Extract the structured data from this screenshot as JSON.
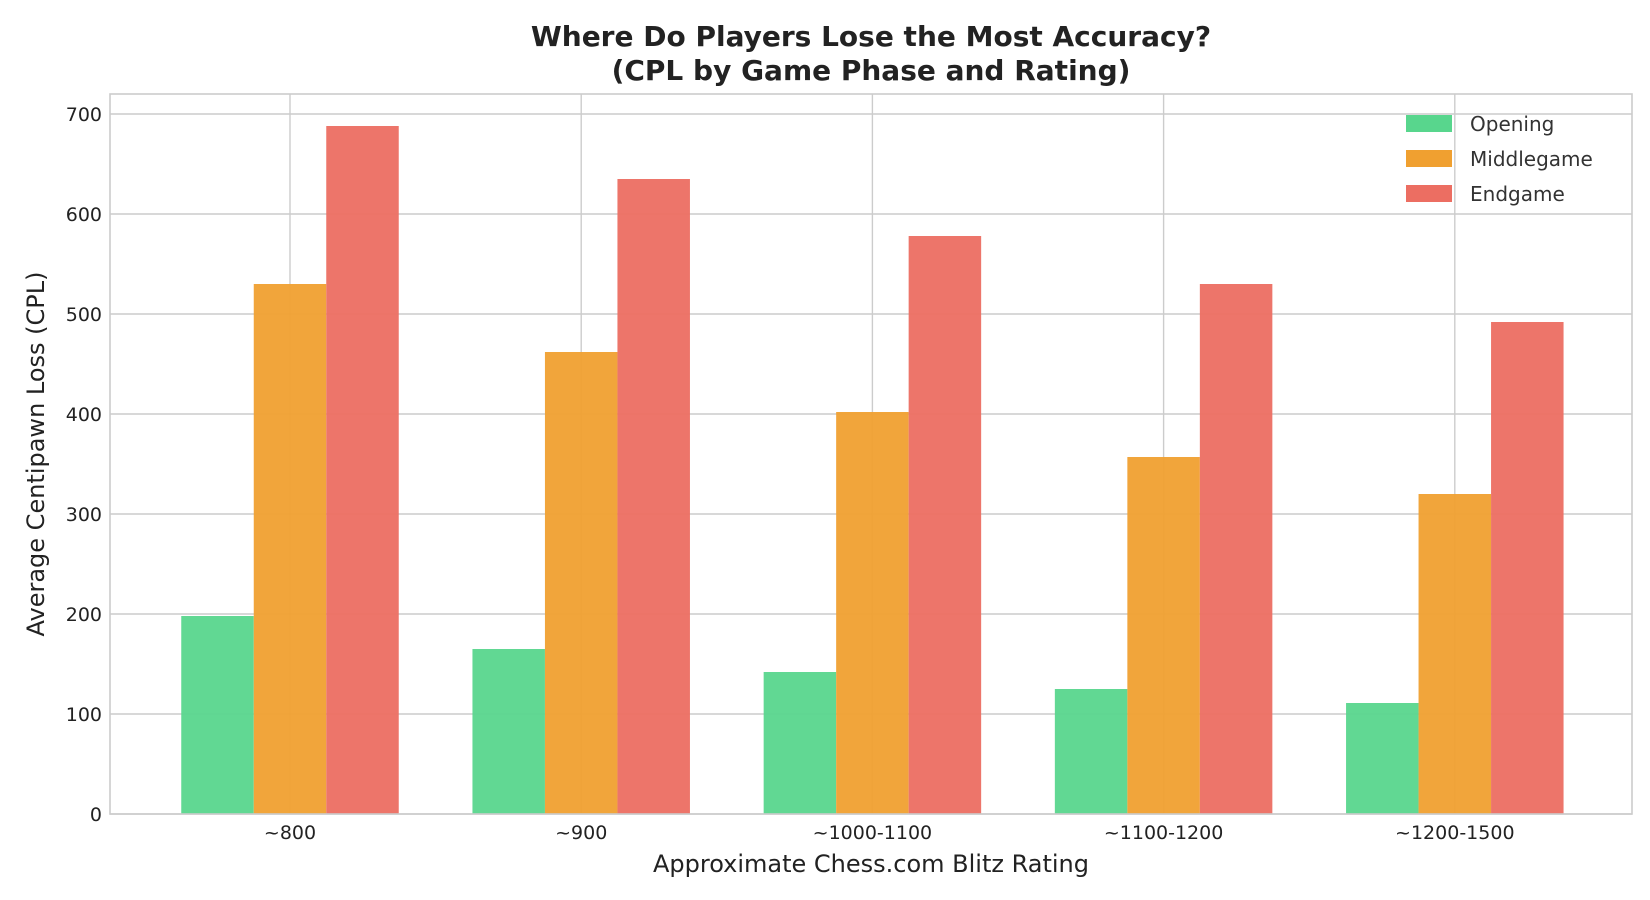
{
  "chart_data": {
    "type": "bar",
    "title": "Where Do Players Lose the Most Accuracy?",
    "subtitle": "(CPL by Game Phase and Rating)",
    "xlabel": "Approximate Chess.com Blitz Rating",
    "ylabel": "Average Centipawn Loss (CPL)",
    "ylim": [
      0,
      720
    ],
    "yticks": [
      0,
      100,
      200,
      300,
      400,
      500,
      600,
      700
    ],
    "grid": true,
    "legend_position": "top-right",
    "categories": [
      "~800",
      "~900",
      "~1000-1100",
      "~1100-1200",
      "~1200-1500"
    ],
    "series": [
      {
        "name": "Opening",
        "color": "#58d68d",
        "values": [
          198,
          165,
          142,
          125,
          111
        ]
      },
      {
        "name": "Middlegame",
        "color": "#f0a030",
        "values": [
          530,
          462,
          402,
          357,
          320
        ]
      },
      {
        "name": "Endgame",
        "color": "#ec6e62",
        "values": [
          688,
          635,
          578,
          530,
          492
        ]
      }
    ]
  }
}
